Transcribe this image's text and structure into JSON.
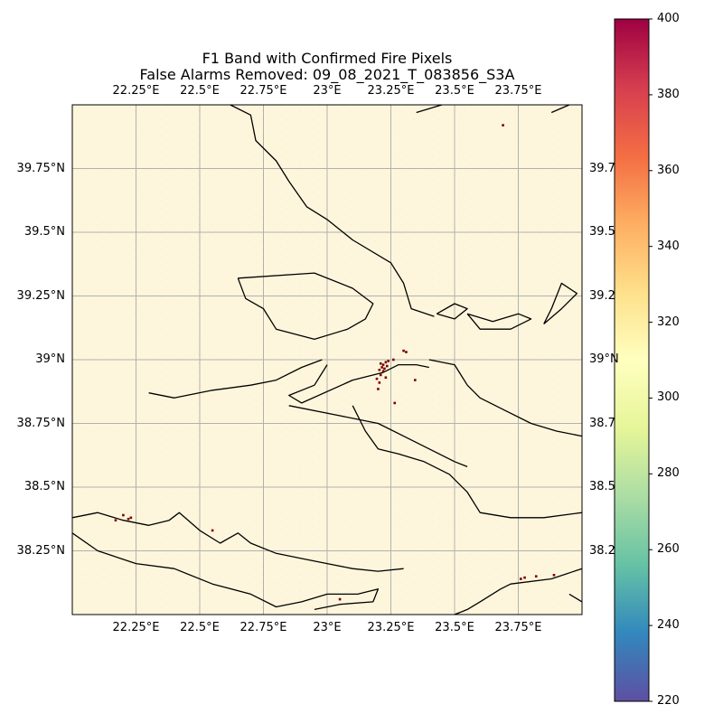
{
  "title": {
    "line1": "F1 Band with Confirmed Fire Pixels",
    "line2": "False Alarms Removed: 09_08_2021_T_083856_S3A"
  },
  "axes": {
    "lon_ticks": [
      "22.25°E",
      "22.5°E",
      "22.75°E",
      "23°E",
      "23.25°E",
      "23.5°E",
      "23.75°E"
    ],
    "lon_values": [
      22.25,
      22.5,
      22.75,
      23.0,
      23.25,
      23.5,
      23.75
    ],
    "lat_ticks": [
      "39.75°N",
      "39.5°N",
      "39.25°N",
      "39°N",
      "38.75°N",
      "38.5°N",
      "38.25°N"
    ],
    "lat_values": [
      39.75,
      39.5,
      39.25,
      39.0,
      38.75,
      38.5,
      38.25
    ],
    "lat_ticks_right_visible": [
      "39.7",
      "39.5",
      "39.2",
      "39°N",
      "38.7",
      "38.5",
      "38.2"
    ],
    "lon_range": [
      22.0,
      24.0
    ],
    "lat_range": [
      38.0,
      40.0
    ],
    "grid": true
  },
  "colorbar": {
    "colormap": "Spectral_r",
    "range": [
      220,
      400
    ],
    "ticks": [
      "400",
      "380",
      "360",
      "340",
      "320",
      "300",
      "280",
      "260",
      "240",
      "220"
    ],
    "tick_values": [
      400,
      380,
      360,
      340,
      320,
      300,
      280,
      260,
      240,
      220
    ],
    "colors_top_to_bottom": [
      "#9e0142",
      "#d53e4f",
      "#f46d43",
      "#fdae61",
      "#fee08b",
      "#ffffbf",
      "#e6f598",
      "#abdda4",
      "#66c2a5",
      "#3288bd",
      "#5e4fa2"
    ]
  },
  "map": {
    "background_color": "#fef6dc",
    "fire_pixel_color": "#7a0000",
    "fire_pixels": [
      {
        "lon": 23.21,
        "lat": 38.985
      },
      {
        "lon": 23.22,
        "lat": 38.98
      },
      {
        "lon": 23.215,
        "lat": 38.97
      },
      {
        "lon": 23.225,
        "lat": 38.965
      },
      {
        "lon": 23.23,
        "lat": 38.99
      },
      {
        "lon": 23.235,
        "lat": 38.975
      },
      {
        "lon": 23.205,
        "lat": 38.96
      },
      {
        "lon": 23.22,
        "lat": 38.955
      },
      {
        "lon": 23.24,
        "lat": 38.995
      },
      {
        "lon": 23.26,
        "lat": 39.0
      },
      {
        "lon": 23.3,
        "lat": 39.035
      },
      {
        "lon": 23.31,
        "lat": 39.03
      },
      {
        "lon": 23.21,
        "lat": 38.94
      },
      {
        "lon": 23.23,
        "lat": 38.93
      },
      {
        "lon": 23.205,
        "lat": 38.91
      },
      {
        "lon": 23.195,
        "lat": 38.925
      },
      {
        "lon": 23.2,
        "lat": 38.885
      },
      {
        "lon": 23.345,
        "lat": 38.92
      },
      {
        "lon": 23.265,
        "lat": 38.83
      },
      {
        "lon": 22.17,
        "lat": 38.37
      },
      {
        "lon": 22.2,
        "lat": 38.39
      },
      {
        "lon": 22.22,
        "lat": 38.375
      },
      {
        "lon": 22.23,
        "lat": 38.38
      },
      {
        "lon": 22.55,
        "lat": 38.33
      },
      {
        "lon": 23.76,
        "lat": 38.14
      },
      {
        "lon": 23.775,
        "lat": 38.145
      },
      {
        "lon": 23.82,
        "lat": 38.15
      },
      {
        "lon": 23.89,
        "lat": 38.155
      },
      {
        "lon": 23.05,
        "lat": 38.06
      },
      {
        "lon": 23.69,
        "lat": 39.92
      }
    ],
    "coastlines": [
      [
        [
          22.62,
          40.0
        ],
        [
          22.7,
          39.96
        ],
        [
          22.72,
          39.86
        ],
        [
          22.8,
          39.78
        ],
        [
          22.85,
          39.7
        ],
        [
          22.92,
          39.6
        ],
        [
          23.0,
          39.55
        ],
        [
          23.1,
          39.47
        ],
        [
          23.25,
          39.38
        ],
        [
          23.3,
          39.3
        ],
        [
          23.33,
          39.2
        ],
        [
          23.42,
          39.17
        ]
      ],
      [
        [
          22.65,
          39.32
        ],
        [
          22.95,
          39.34
        ],
        [
          23.1,
          39.28
        ],
        [
          23.18,
          39.22
        ],
        [
          23.15,
          39.16
        ],
        [
          23.08,
          39.12
        ],
        [
          22.95,
          39.08
        ],
        [
          22.8,
          39.12
        ],
        [
          22.75,
          39.2
        ],
        [
          22.68,
          39.24
        ],
        [
          22.65,
          39.32
        ]
      ],
      [
        [
          22.98,
          39.0
        ],
        [
          22.9,
          38.97
        ],
        [
          22.8,
          38.92
        ],
        [
          22.7,
          38.9
        ],
        [
          22.55,
          38.88
        ],
        [
          22.4,
          38.85
        ],
        [
          22.3,
          38.87
        ]
      ],
      [
        [
          23.0,
          38.98
        ],
        [
          22.95,
          38.9
        ],
        [
          22.85,
          38.86
        ],
        [
          22.9,
          38.83
        ],
        [
          23.1,
          38.92
        ],
        [
          23.22,
          38.95
        ],
        [
          23.28,
          38.98
        ],
        [
          23.35,
          38.98
        ],
        [
          23.4,
          38.97
        ]
      ],
      [
        [
          23.1,
          38.82
        ],
        [
          23.15,
          38.72
        ],
        [
          23.2,
          38.65
        ],
        [
          23.28,
          38.63
        ],
        [
          23.38,
          38.6
        ],
        [
          23.48,
          38.55
        ],
        [
          23.55,
          38.48
        ],
        [
          23.6,
          38.4
        ],
        [
          23.72,
          38.38
        ],
        [
          23.85,
          38.38
        ],
        [
          24.0,
          38.4
        ]
      ],
      [
        [
          22.85,
          38.82
        ],
        [
          23.05,
          38.78
        ],
        [
          23.2,
          38.75
        ],
        [
          23.3,
          38.7
        ],
        [
          23.4,
          38.65
        ],
        [
          23.5,
          38.6
        ],
        [
          23.55,
          38.58
        ]
      ],
      [
        [
          23.4,
          39.0
        ],
        [
          23.5,
          38.98
        ],
        [
          23.55,
          38.9
        ],
        [
          23.6,
          38.85
        ],
        [
          23.7,
          38.8
        ],
        [
          23.8,
          38.75
        ],
        [
          23.9,
          38.72
        ],
        [
          24.0,
          38.7
        ]
      ],
      [
        [
          23.55,
          39.18
        ],
        [
          23.65,
          39.15
        ],
        [
          23.75,
          39.18
        ],
        [
          23.8,
          39.16
        ],
        [
          23.72,
          39.12
        ],
        [
          23.6,
          39.12
        ],
        [
          23.55,
          39.18
        ]
      ],
      [
        [
          23.43,
          39.18
        ],
        [
          23.5,
          39.22
        ],
        [
          23.55,
          39.2
        ],
        [
          23.5,
          39.16
        ],
        [
          23.43,
          39.18
        ]
      ],
      [
        [
          23.85,
          39.14
        ],
        [
          23.92,
          39.2
        ],
        [
          23.98,
          39.26
        ],
        [
          23.92,
          39.3
        ],
        [
          23.88,
          39.2
        ],
        [
          23.85,
          39.14
        ]
      ],
      [
        [
          23.35,
          39.97
        ],
        [
          23.45,
          40.0
        ]
      ],
      [
        [
          23.88,
          39.97
        ],
        [
          23.95,
          40.0
        ]
      ],
      [
        [
          22.0,
          38.38
        ],
        [
          22.1,
          38.4
        ],
        [
          22.2,
          38.37
        ],
        [
          22.3,
          38.35
        ],
        [
          22.38,
          38.37
        ],
        [
          22.42,
          38.4
        ],
        [
          22.5,
          38.33
        ],
        [
          22.58,
          38.28
        ],
        [
          22.65,
          38.32
        ],
        [
          22.7,
          38.28
        ],
        [
          22.8,
          38.24
        ],
        [
          22.9,
          38.22
        ],
        [
          23.0,
          38.2
        ],
        [
          23.1,
          38.18
        ],
        [
          23.2,
          38.17
        ],
        [
          23.3,
          38.18
        ]
      ],
      [
        [
          22.0,
          38.32
        ],
        [
          22.1,
          38.25
        ],
        [
          22.25,
          38.2
        ],
        [
          22.4,
          38.18
        ],
        [
          22.55,
          38.12
        ],
        [
          22.7,
          38.08
        ],
        [
          22.8,
          38.03
        ],
        [
          22.9,
          38.05
        ],
        [
          23.0,
          38.08
        ],
        [
          23.12,
          38.08
        ],
        [
          23.2,
          38.1
        ],
        [
          23.18,
          38.05
        ],
        [
          23.05,
          38.04
        ],
        [
          22.95,
          38.02
        ]
      ],
      [
        [
          23.5,
          38.0
        ],
        [
          23.55,
          38.02
        ],
        [
          23.6,
          38.05
        ],
        [
          23.68,
          38.1
        ],
        [
          23.72,
          38.12
        ],
        [
          23.88,
          38.14
        ],
        [
          24.0,
          38.18
        ]
      ],
      [
        [
          23.95,
          38.08
        ],
        [
          24.0,
          38.05
        ]
      ]
    ]
  }
}
